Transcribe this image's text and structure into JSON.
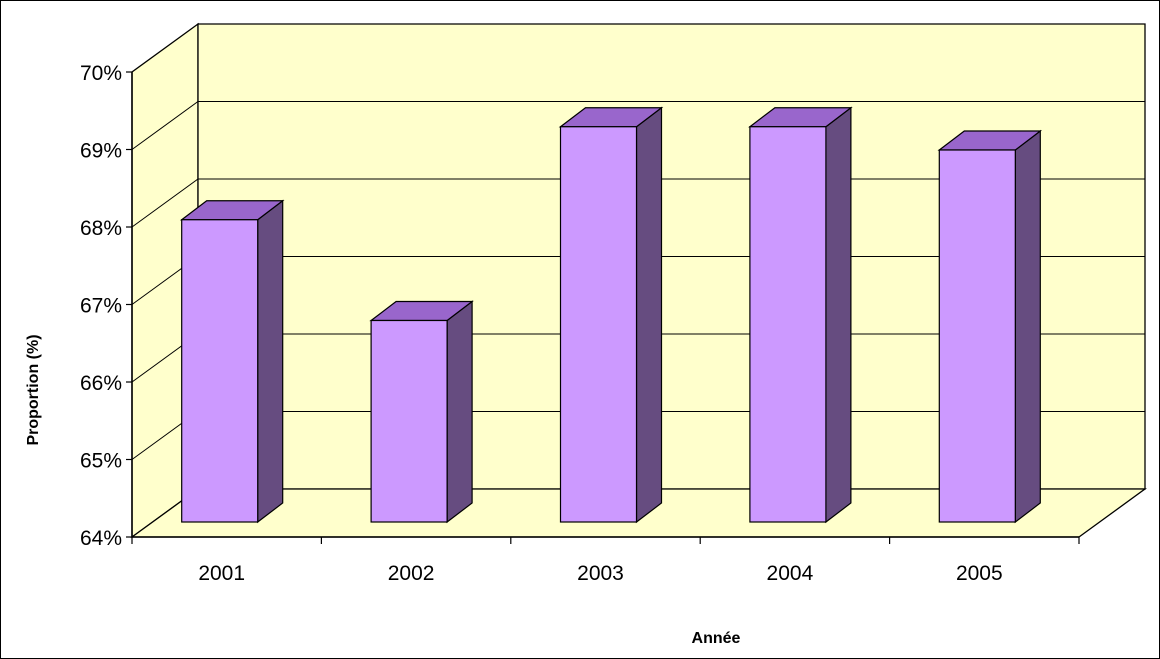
{
  "chart_data": {
    "type": "bar",
    "style": "3d-column",
    "title": "",
    "xlabel": "Année",
    "ylabel": "Proportion (%)",
    "categories": [
      "2001",
      "2002",
      "2003",
      "2004",
      "2005"
    ],
    "values": [
      67.9,
      66.6,
      69.1,
      69.1,
      68.8
    ],
    "unit": "%",
    "ylim": [
      64,
      70
    ],
    "yticks": [
      64,
      65,
      66,
      67,
      68,
      69,
      70
    ],
    "ytick_labels": [
      "64%",
      "65%",
      "66%",
      "67%",
      "68%",
      "69%",
      "70%"
    ],
    "grid": true,
    "legend": "none",
    "colors": {
      "bar_front": "#cc99ff",
      "bar_top": "#9966cc",
      "bar_side": "#664c80",
      "wall": "#ffffcc",
      "floor": "#ffffcc",
      "gridline": "#000000",
      "outline": "#000000"
    }
  }
}
